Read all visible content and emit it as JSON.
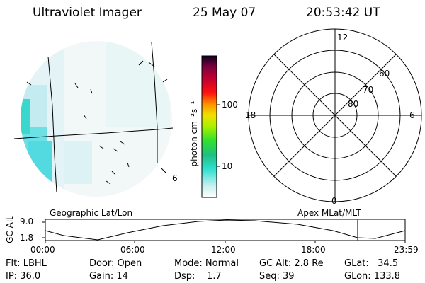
{
  "header": {
    "instrument": "Ultraviolet Imager",
    "date": "25 May 07",
    "time": "20:53:42 UT"
  },
  "colorbar": {
    "unit_label": "photon cm⁻²s⁻¹",
    "ticks": [
      "100",
      "10"
    ]
  },
  "left_panel": {
    "label": "Geographic Lat/Lon",
    "corner_mark": "6"
  },
  "right_panel": {
    "label": "Apex MLat/MLT",
    "mlt_labels": {
      "top": "12",
      "left": "18",
      "right": "6",
      "bottom": "0"
    },
    "lat_labels": [
      "60",
      "70",
      "80"
    ]
  },
  "timeline": {
    "y_title": "GC Alt",
    "y_ticks": [
      "9.0",
      "1.8"
    ],
    "x_ticks": [
      "00:00",
      "06:00",
      "12:00",
      "18:00",
      "23:59"
    ],
    "marker_color": "#ff0000"
  },
  "status": {
    "flt": "Flt: LBHL",
    "ip": "IP: 36.0",
    "door": "Door: Open",
    "gain": "Gain: 14",
    "mode": "Mode: Normal",
    "dsp": "Dsp:    1.7",
    "gcalt": "GC Alt: 2.8 Re",
    "seq": "Seq: 39",
    "glat": "GLat:   34.5",
    "glon": "GLon: 133.8"
  }
}
